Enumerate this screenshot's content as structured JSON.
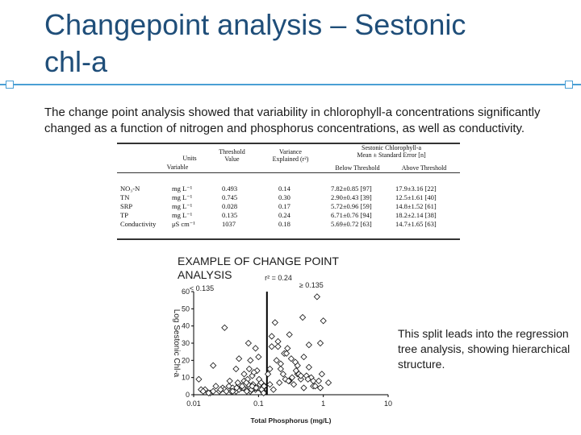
{
  "slide": {
    "title_line1": "Changepoint analysis – Sestonic",
    "title_line2": "chl-a",
    "body": "The change point analysis showed that variability in chlorophyll-a concentrations significantly changed as a function of nitrogen and phosphorus concentrations, as well as conductivity.",
    "example_line1": "EXAMPLE OF CHANGE POINT",
    "example_line2": "ANALYSIS",
    "side_note": "This split leads into the regression tree analysis, showing hierarchical structure."
  },
  "colors": {
    "title": "#1f4e79",
    "accent": "#4a9fd4"
  },
  "table": {
    "headers": {
      "variable": "Variable",
      "units": "Units",
      "threshold_line1": "Threshold",
      "threshold_line2": "Value",
      "variance_line1": "Variance",
      "variance_line2": "Explained (r²)",
      "group_line1": "Sestonic Chlorophyll-a",
      "group_line2": "Mean ± Standard Error [n]",
      "below": "Below Threshold",
      "above": "Above Threshold"
    },
    "rows": [
      {
        "variable": "NO₃-N",
        "units": "mg L⁻¹",
        "threshold": "0.493",
        "r2": "0.14",
        "below": "7.82±0.85 [97]",
        "above": "17.9±3.16 [22]"
      },
      {
        "variable": "TN",
        "units": "mg L⁻¹",
        "threshold": "0.745",
        "r2": "0.30",
        "below": "2.90±0.43 [39]",
        "above": "12.5±1.61 [40]"
      },
      {
        "variable": "SRP",
        "units": "mg L⁻¹",
        "threshold": "0.028",
        "r2": "0.17",
        "below": "5.72±0.96 [59]",
        "above": "14.8±1.52 [61]"
      },
      {
        "variable": "TP",
        "units": "mg L⁻¹",
        "threshold": "0.135",
        "r2": "0.24",
        "below": "6.71±0.76 [94]",
        "above": "18.2±2.14 [38]"
      },
      {
        "variable": "Conductivity",
        "units": "μS cm⁻¹",
        "threshold": "1037",
        "r2": "0.18",
        "below": "5.69±0.72 [63]",
        "above": "14.7±1.65 [63]"
      }
    ]
  },
  "chart_data": {
    "type": "scatter",
    "xlabel": "Total Phosphorus (mg/L)",
    "ylabel": "Log Sestonic Chl-a",
    "xscale": "log",
    "xlim": [
      0.01,
      10
    ],
    "ylim": [
      0,
      60
    ],
    "xticks": [
      "0.01",
      "0.1",
      "1",
      "10"
    ],
    "yticks": [
      "0",
      "10",
      "20",
      "30",
      "40",
      "50",
      "60"
    ],
    "threshold": 0.135,
    "annotation_r2": "r² = 0.24",
    "label_below": "< 0.135",
    "label_above": "≥ 0.135",
    "x": [
      0.012,
      0.015,
      0.018,
      0.02,
      0.025,
      0.028,
      0.03,
      0.032,
      0.035,
      0.04,
      0.045,
      0.05,
      0.05,
      0.055,
      0.06,
      0.065,
      0.07,
      0.075,
      0.08,
      0.085,
      0.09,
      0.1,
      0.11,
      0.12,
      0.013,
      0.022,
      0.038,
      0.048,
      0.058,
      0.068,
      0.078,
      0.088,
      0.095,
      0.105,
      0.115,
      0.125,
      0.017,
      0.026,
      0.036,
      0.046,
      0.056,
      0.066,
      0.072,
      0.082,
      0.092,
      0.102,
      0.112,
      0.122,
      0.03,
      0.06,
      0.075,
      0.09,
      0.11,
      0.02,
      0.04,
      0.065,
      0.085,
      0.1,
      0.045,
      0.07,
      0.014,
      0.05,
      0.08,
      0.12,
      0.14,
      0.15,
      0.16,
      0.18,
      0.2,
      0.22,
      0.25,
      0.28,
      0.3,
      0.35,
      0.4,
      0.45,
      0.5,
      0.6,
      0.7,
      0.8,
      0.9,
      1.0,
      0.15,
      0.19,
      0.24,
      0.3,
      0.38,
      0.5,
      0.65,
      0.85,
      0.17,
      0.21,
      0.27,
      0.33,
      0.42,
      0.55,
      0.16,
      0.2,
      0.26,
      0.32,
      0.4,
      0.48,
      0.6,
      0.75,
      0.95,
      1.2,
      0.22,
      0.29,
      0.37,
      0.45,
      0.58,
      0.7,
      0.9
    ],
    "y": [
      9,
      3,
      1,
      2,
      2,
      4,
      3,
      2,
      5,
      4,
      2,
      6,
      3,
      4,
      8,
      3,
      6,
      2,
      11,
      5,
      3,
      4,
      7,
      2,
      3,
      5,
      2,
      7,
      4,
      9,
      3,
      4,
      14,
      6,
      2,
      5,
      1,
      3,
      8,
      4,
      5,
      2,
      15,
      6,
      4,
      9,
      3,
      5,
      39,
      12,
      20,
      27,
      7,
      17,
      2,
      7,
      13,
      22,
      15,
      30,
      2,
      21,
      5,
      1,
      12,
      15,
      34,
      42,
      31,
      18,
      24,
      27,
      8,
      6,
      12,
      9,
      4,
      16,
      5,
      57,
      30,
      43,
      6,
      20,
      12,
      35,
      14,
      22,
      10,
      8,
      3,
      7,
      24,
      10,
      12,
      11,
      28,
      28,
      9,
      21,
      17,
      45,
      29,
      5,
      12,
      7,
      15,
      8,
      19,
      11,
      9,
      8,
      4
    ]
  }
}
